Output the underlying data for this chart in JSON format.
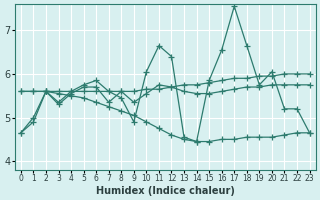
{
  "xlabel": "Humidex (Indice chaleur)",
  "bg_color": "#d8f0f0",
  "grid_color": "#ffffff",
  "line_color": "#2d7b6e",
  "xlim": [
    -0.5,
    23.5
  ],
  "ylim": [
    3.8,
    7.6
  ],
  "yticks": [
    4,
    5,
    6,
    7
  ],
  "xtick_labels": [
    "0",
    "1",
    "2",
    "3",
    "4",
    "5",
    "6",
    "7",
    "8",
    "9",
    "10",
    "11",
    "12",
    "13",
    "14",
    "15",
    "16",
    "17",
    "18",
    "19",
    "20",
    "21",
    "22",
    "23"
  ],
  "series": [
    [
      4.65,
      4.9,
      5.6,
      5.35,
      5.6,
      5.75,
      5.85,
      5.6,
      5.45,
      4.9,
      6.05,
      6.65,
      6.4,
      4.55,
      4.45,
      5.85,
      6.55,
      7.55,
      6.65,
      5.75,
      6.05,
      5.2,
      5.2,
      4.65
    ],
    [
      4.65,
      5.0,
      5.6,
      5.3,
      5.55,
      5.7,
      5.7,
      5.35,
      5.6,
      5.35,
      5.55,
      5.75,
      5.7,
      5.6,
      5.55,
      5.55,
      5.6,
      5.65,
      5.7,
      5.7,
      5.75,
      5.75,
      5.75,
      5.75
    ],
    [
      5.6,
      5.6,
      5.6,
      5.6,
      5.6,
      5.6,
      5.6,
      5.6,
      5.6,
      5.6,
      5.65,
      5.65,
      5.7,
      5.75,
      5.75,
      5.8,
      5.85,
      5.9,
      5.9,
      5.95,
      5.95,
      6.0,
      6.0,
      6.0
    ],
    [
      5.6,
      5.6,
      5.6,
      5.55,
      5.5,
      5.45,
      5.35,
      5.25,
      5.15,
      5.05,
      4.9,
      4.75,
      4.6,
      4.5,
      4.45,
      4.45,
      4.5,
      4.5,
      4.55,
      4.55,
      4.55,
      4.6,
      4.65,
      4.65
    ]
  ]
}
